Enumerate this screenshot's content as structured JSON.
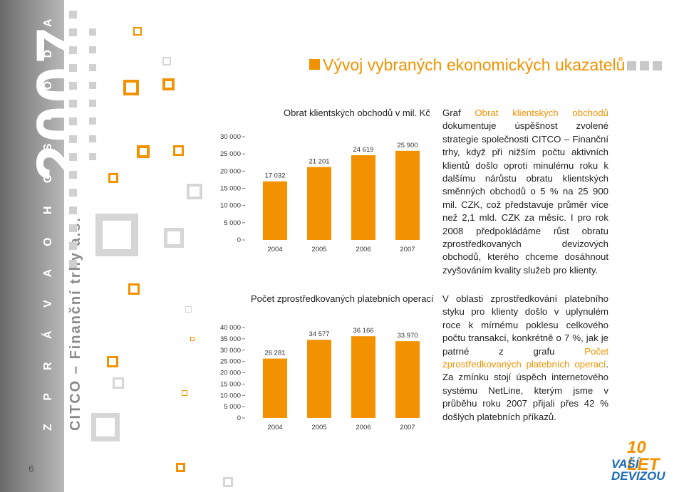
{
  "header": {
    "title": "Vývoj vybraných ekonomických ukazatelů"
  },
  "sidebar": {
    "year": "2007",
    "report": "Z P R Á V A   O   H O S P O D A Ř E N Í",
    "company": "CITCO – Finanční trhy a.s.",
    "page_number": "6"
  },
  "charts": {
    "turnover_title": "Obrat klientských obchodů v mil. Kč",
    "payments_title": "Počet zprostředkovaných platebních operací"
  },
  "chart_data": [
    {
      "type": "bar",
      "title": "Obrat klientských obchodů v mil. Kč",
      "categories": [
        "2004",
        "2005",
        "2006",
        "2007"
      ],
      "values": [
        17032,
        21201,
        24619,
        25900
      ],
      "value_labels": [
        "17 032",
        "21 201",
        "24 619",
        "25 900"
      ],
      "yticks": [
        "0",
        "5 000",
        "10 000",
        "15 000",
        "20 000",
        "25 000",
        "30 000"
      ],
      "ylim": [
        0,
        30000
      ],
      "bar_color": "#f39200"
    },
    {
      "type": "bar",
      "title": "Počet zprostředkovaných platebních operací",
      "categories": [
        "2004",
        "2005",
        "2006",
        "2007"
      ],
      "values": [
        26281,
        34577,
        36166,
        33970
      ],
      "value_labels": [
        "26 281",
        "34 577",
        "36 166",
        "33 970"
      ],
      "yticks": [
        "0",
        "5 000",
        "10 000",
        "15 000",
        "20 000",
        "25 000",
        "30 000",
        "35 000",
        "40 000"
      ],
      "ylim": [
        0,
        40000
      ],
      "bar_color": "#f39200"
    }
  ],
  "text": {
    "p1_a": "Graf ",
    "p1_hl": "Obrat klientských obchodů",
    "p1_b": " dokumentuje úspěšnost zvolené strategie společnosti CITCO – Finanční trhy, když při nižším počtu aktivních klientů došlo oproti minulému roku k dalšímu nárůstu obratu klientských směnných obchodů o 5 % na 25 900 mil. CZK, což představuje průměr více než 2,1 mld. CZK za měsíc. I pro rok 2008 předpokládáme růst obratu zprostředkovaných devizových obchodů, kterého chceme dosáhnout zvyšováním kvality služeb pro klienty.",
    "p2_a": "V oblasti zprostředkování platebního styku pro klienty došlo v uplynulém roce k mírnému poklesu celkového počtu transakcí, konkrétně o 7 %, jak je patrné z grafu ",
    "p2_hl": "Počet zprostředkovaných platebních operací",
    "p2_b": ". Za zmínku stojí úspěch internetového systému NetLine, kterým jsme v průběhu roku 2007 přijali přes 42 % došlých platebních příkazů."
  },
  "logo": {
    "line1": "10 LET",
    "line2": "VAŠÍ DEVIZOU"
  },
  "colors": {
    "accent": "#f39200",
    "logo_blue": "#1a6bb5"
  }
}
